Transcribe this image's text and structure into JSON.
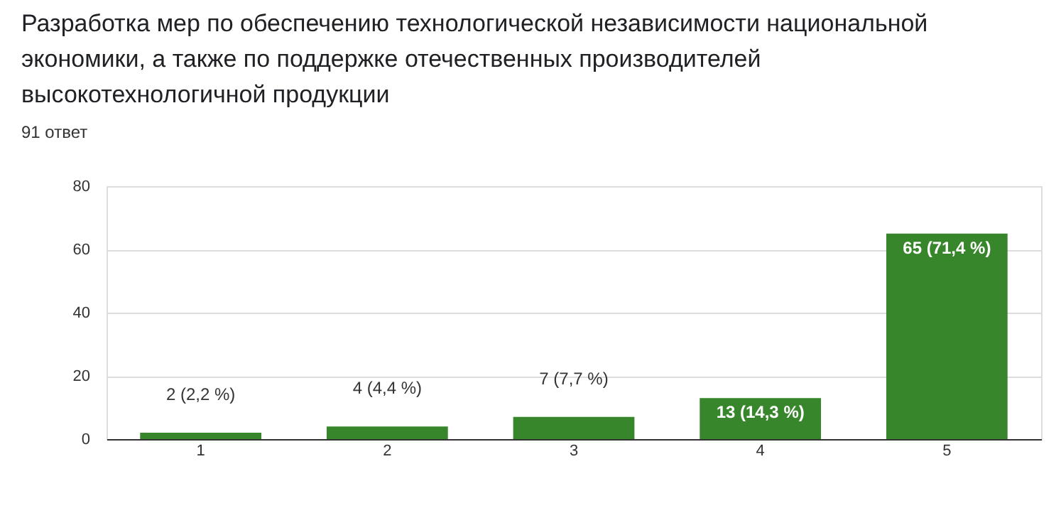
{
  "chart_data": {
    "type": "bar",
    "title": "Разработка мер по обеспечению технологической независимости национальной\nэкономики, а также по поддержке отечественных производителей\nвысокотехнологичной продукции",
    "subtitle": "91 ответ",
    "categories": [
      "1",
      "2",
      "3",
      "4",
      "5"
    ],
    "values": [
      2,
      4,
      7,
      13,
      65
    ],
    "value_labels": [
      "2 (2,2 %)",
      "4 (4,4 %)",
      "7 (7,7 %)",
      "13 (14,3 %)",
      "65 (71,4 %)"
    ],
    "color": "#38862c",
    "ylim": [
      0,
      80
    ],
    "yticks": [
      0,
      20,
      40,
      60,
      80
    ],
    "grid": "y"
  }
}
